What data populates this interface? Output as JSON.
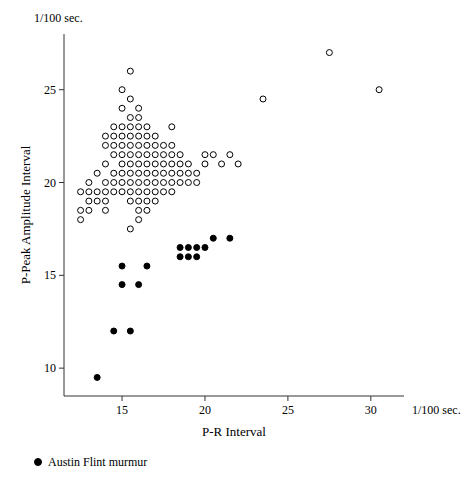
{
  "chart_data": {
    "type": "scatter",
    "xlabel": "P-R Interval",
    "ylabel": "P-Peak Amplitude Interval",
    "annotations": [
      "1/100 sec.",
      "1/100 sec."
    ],
    "xlim": [
      11.5,
      32
    ],
    "ylim": [
      8.5,
      28
    ],
    "xticks": [
      15,
      20,
      25,
      30
    ],
    "yticks": [
      10,
      15,
      20,
      25
    ],
    "grid": false,
    "legend": "bottom",
    "series": [
      {
        "marker": "circle-open",
        "color": "#000000",
        "x": [
          12.5,
          12.5,
          12.5,
          13.0,
          13.0,
          13.0,
          13.0,
          13.5,
          13.5,
          13.5,
          14.0,
          14.0,
          14.0,
          14.0,
          14.0,
          14.0,
          14.0,
          14.5,
          14.5,
          14.5,
          14.5,
          14.5,
          14.5,
          14.5,
          15.0,
          15.0,
          15.0,
          15.0,
          15.0,
          15.0,
          15.0,
          15.0,
          15.0,
          15.0,
          15.5,
          15.5,
          15.5,
          15.5,
          15.5,
          15.5,
          15.5,
          15.5,
          15.5,
          15.5,
          15.5,
          15.5,
          15.5,
          16.0,
          16.0,
          16.0,
          16.0,
          16.0,
          16.0,
          16.0,
          16.0,
          16.0,
          16.0,
          16.0,
          16.0,
          16.0,
          16.5,
          16.5,
          16.5,
          16.5,
          16.5,
          16.5,
          16.5,
          16.5,
          16.5,
          16.5,
          17.0,
          17.0,
          17.0,
          17.0,
          17.0,
          17.0,
          17.0,
          17.0,
          17.5,
          17.5,
          17.5,
          17.5,
          17.5,
          17.5,
          18.0,
          18.0,
          18.0,
          18.0,
          18.0,
          18.0,
          18.0,
          18.5,
          18.5,
          18.5,
          18.5,
          19.0,
          19.0,
          19.0,
          19.5,
          19.5,
          20.0,
          20.0,
          20.5,
          21.0,
          21.5,
          22.0,
          23.5,
          27.5,
          30.5
        ],
        "values": [
          19.5,
          18.5,
          18.0,
          20.0,
          19.5,
          19.0,
          18.5,
          20.5,
          19.5,
          19.0,
          22.5,
          22.0,
          21.0,
          20.0,
          19.5,
          19.0,
          18.5,
          23.0,
          22.5,
          22.0,
          21.5,
          20.5,
          20.0,
          19.5,
          25.0,
          24.0,
          23.0,
          22.5,
          22.0,
          21.5,
          21.0,
          20.5,
          20.0,
          19.5,
          26.0,
          24.5,
          23.5,
          23.0,
          22.5,
          22.0,
          21.5,
          21.0,
          20.5,
          20.0,
          19.5,
          19.0,
          17.5,
          24.0,
          23.5,
          23.0,
          22.5,
          22.0,
          21.5,
          21.0,
          20.5,
          20.0,
          19.5,
          19.0,
          18.5,
          18.0,
          23.0,
          22.5,
          22.0,
          21.5,
          21.0,
          20.5,
          20.0,
          19.5,
          19.0,
          18.5,
          22.5,
          22.0,
          21.5,
          21.0,
          20.5,
          20.0,
          19.5,
          19.0,
          22.0,
          21.5,
          21.0,
          20.5,
          20.0,
          19.5,
          23.0,
          22.0,
          21.5,
          21.0,
          20.5,
          20.0,
          19.5,
          21.5,
          21.0,
          20.5,
          20.0,
          21.0,
          20.5,
          20.0,
          20.5,
          20.0,
          21.5,
          21.0,
          21.5,
          21.0,
          21.5,
          21.0,
          24.5,
          27.0,
          25.0
        ]
      },
      {
        "name": "Austin Flint murmur",
        "marker": "circle",
        "color": "#000000",
        "x": [
          13.5,
          14.5,
          15.5,
          15.0,
          16.0,
          15.0,
          16.5,
          18.5,
          18.5,
          19.0,
          19.0,
          19.5,
          19.5,
          20.0,
          20.5,
          21.5
        ],
        "values": [
          9.5,
          12.0,
          12.0,
          14.5,
          14.5,
          15.5,
          15.5,
          16.0,
          16.5,
          16.0,
          16.5,
          16.0,
          16.5,
          16.5,
          17.0,
          17.0
        ]
      }
    ]
  }
}
